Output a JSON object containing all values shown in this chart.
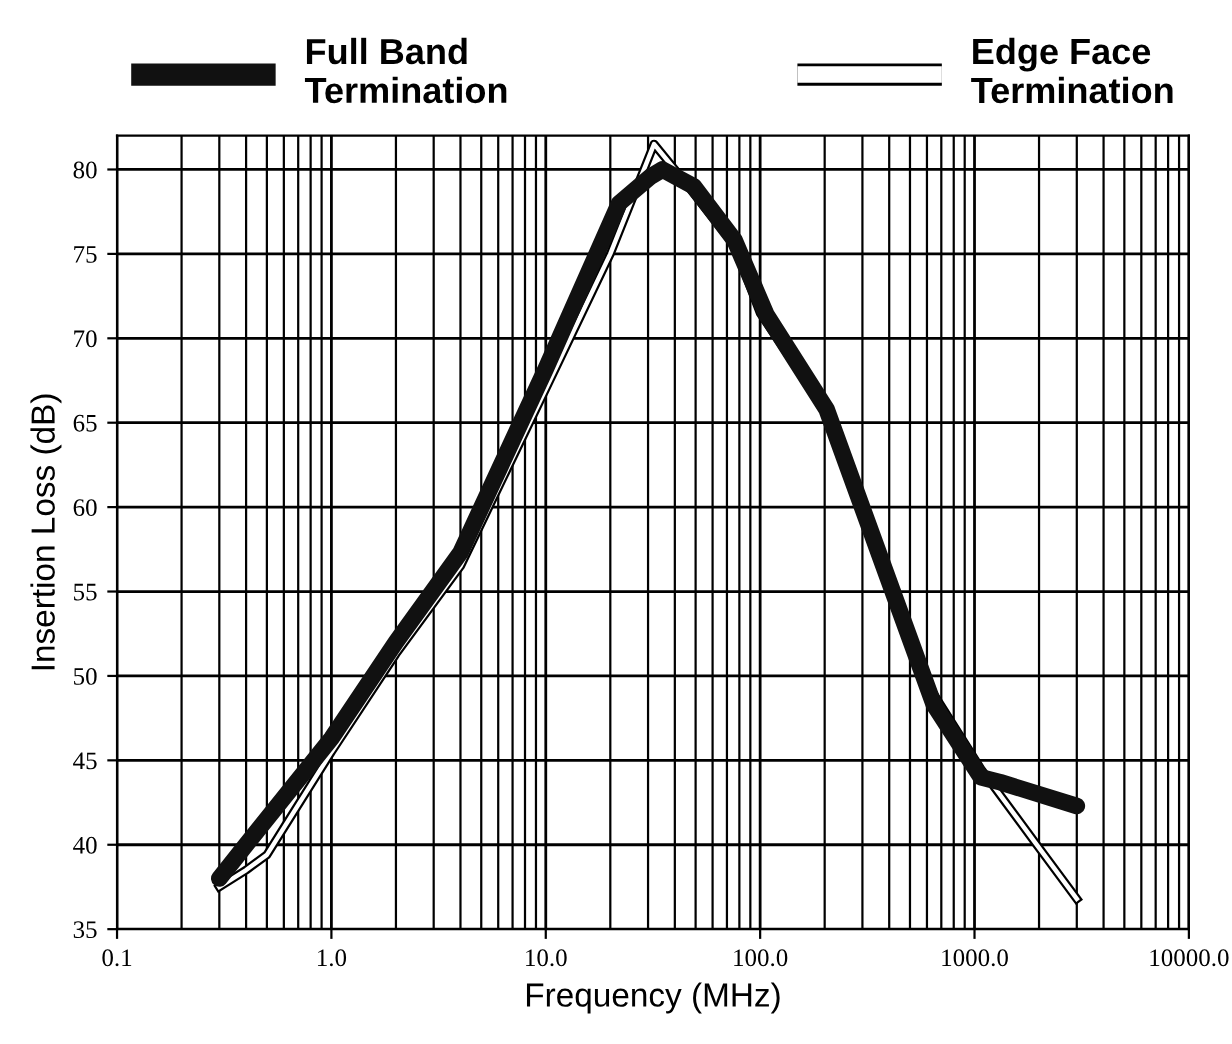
{
  "chart_data": {
    "type": "line",
    "xlabel": "Frequency (MHz)",
    "ylabel": "Insertion Loss (dB)",
    "log": "x",
    "grid": true,
    "legend": "top",
    "marker": "none",
    "line_style": "solid",
    "xlim": [
      0.1,
      10000
    ],
    "ylim": [
      35,
      82
    ],
    "xticks": [
      {
        "value": 0.1,
        "label": "0.1"
      },
      {
        "value": 1,
        "label": "1.0"
      },
      {
        "value": 10,
        "label": "10.0"
      },
      {
        "value": 100,
        "label": "100.0"
      },
      {
        "value": 1000,
        "label": "1000.0"
      },
      {
        "value": 10000,
        "label": "10000.0"
      }
    ],
    "yticks": [
      35,
      40,
      45,
      50,
      55,
      60,
      65,
      70,
      75,
      80
    ],
    "series": [
      {
        "name": "Edge Face\nTermination",
        "color": "#ffffff",
        "x": [
          0.3,
          0.4,
          0.5,
          1,
          2,
          4,
          10,
          20,
          32,
          40,
          76,
          100,
          200,
          640,
          1070,
          1900,
          3000
        ],
        "values": [
          37.5,
          38.5,
          39.4,
          45.5,
          51.3,
          56.5,
          67,
          75,
          81.5,
          80,
          75.5,
          71.5,
          65.8,
          49,
          44.5,
          40.2,
          36.8
        ]
      },
      {
        "name": "Full Band\nTermination",
        "color": "#111111",
        "x": [
          0.3,
          0.4,
          1,
          2,
          4,
          10,
          22,
          31,
          35,
          49,
          76,
          107,
          204,
          646,
          1070,
          1320,
          3000
        ],
        "values": [
          38,
          40,
          46.3,
          52,
          57.3,
          68.2,
          78,
          79.6,
          80,
          79,
          75.8,
          71.4,
          65.8,
          48.3,
          44,
          43.7,
          42.3
        ]
      }
    ]
  }
}
